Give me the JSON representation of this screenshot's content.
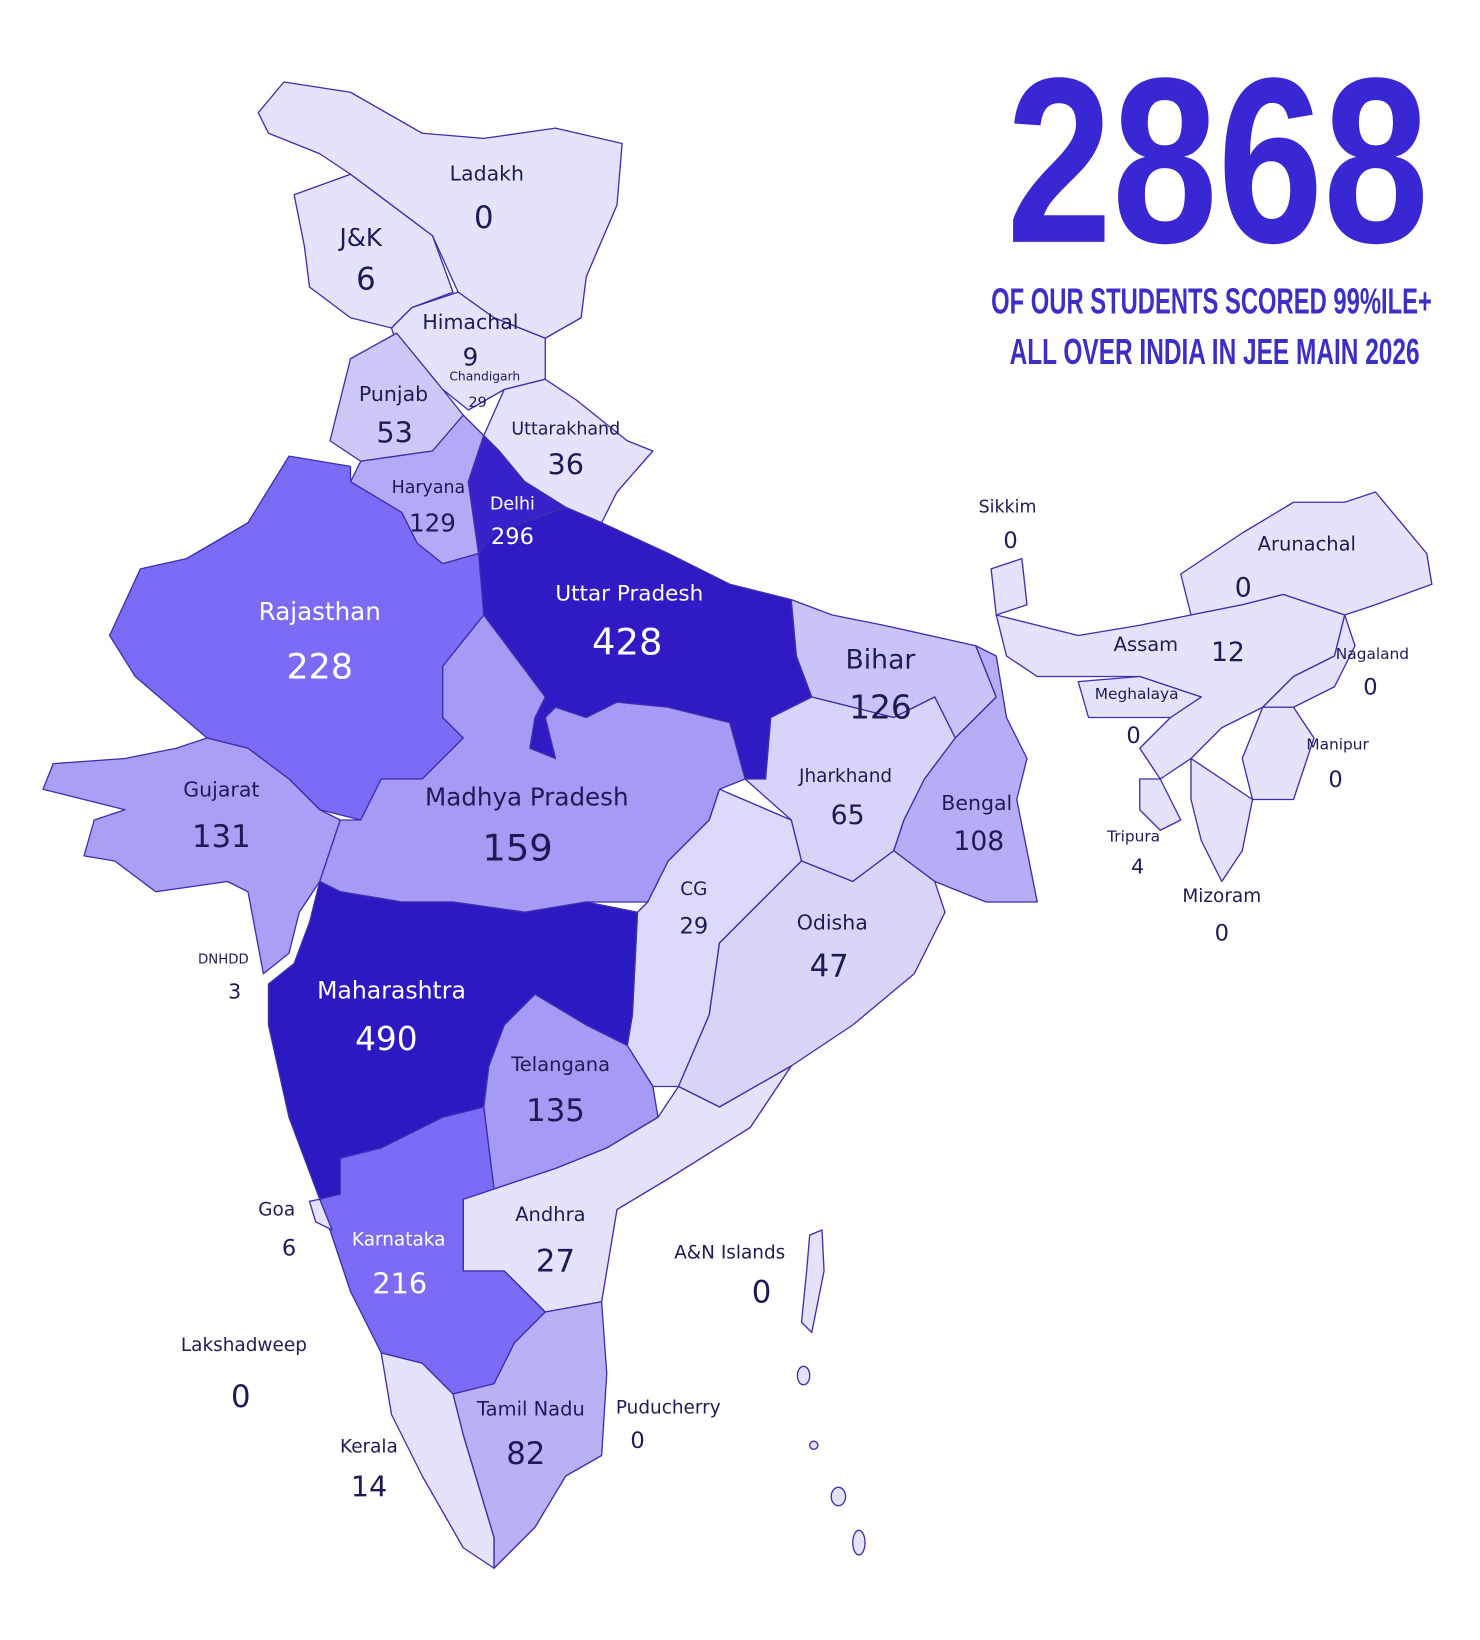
{
  "header": {
    "total": 2868,
    "subtitle_lines": [
      "OF OUR STUDENTS SCORED 99%ILE+",
      "ALL OVER INDIA IN JEE MAIN 2026"
    ]
  },
  "regions": [
    {
      "name": "Ladakh",
      "value": 0,
      "color": "#e5e3fb"
    },
    {
      "name": "J&K",
      "value": 6,
      "color": "#e5e3fb"
    },
    {
      "name": "Himachal",
      "value": 9,
      "color": "#e5e3fb"
    },
    {
      "name": "Chandigarh",
      "value": 29
    },
    {
      "name": "Punjab",
      "value": 53,
      "color": "#cdc8f8"
    },
    {
      "name": "Uttarakhand",
      "value": 36,
      "color": "#e5e3fb"
    },
    {
      "name": "Haryana",
      "value": 129,
      "color": "#b2aaf6"
    },
    {
      "name": "Delhi",
      "value": 296,
      "color": "#3522c9"
    },
    {
      "name": "Uttar Pradesh",
      "value": 428,
      "color": "#2e1bc4"
    },
    {
      "name": "Rajasthan",
      "value": 228,
      "color": "#7b6cf6"
    },
    {
      "name": "Bihar",
      "value": 126,
      "color": "#c9c3f8"
    },
    {
      "name": "Gujarat",
      "value": 131,
      "color": "#a9a0f5"
    },
    {
      "name": "Madhya Pradesh",
      "value": 159,
      "color": "#a49bf5"
    },
    {
      "name": "Jharkhand",
      "value": 65,
      "color": "#d8d4f9"
    },
    {
      "name": "Bengal",
      "value": 108,
      "color": "#b5adf5"
    },
    {
      "name": "CG",
      "value": 29,
      "color": "#dcd9fa"
    },
    {
      "name": "Odisha",
      "value": 47,
      "color": "#d9d5f9"
    },
    {
      "name": "Maharashtra",
      "value": 490,
      "color": "#2b19c2"
    },
    {
      "name": "Telangana",
      "value": 135,
      "color": "#a49bf5"
    },
    {
      "name": "Andhra",
      "value": 27,
      "color": "#e5e3fb"
    },
    {
      "name": "Karnataka",
      "value": 216,
      "color": "#7b6cf6"
    },
    {
      "name": "Tamil Nadu",
      "value": 82,
      "color": "#b8b1f5"
    },
    {
      "name": "Kerala",
      "value": 14,
      "color": "#e5e3fb"
    },
    {
      "name": "Goa",
      "value": 6,
      "color": "#e5e3fb"
    },
    {
      "name": "Lakshadweep",
      "value": 0
    },
    {
      "name": "Puducherry",
      "value": 0
    },
    {
      "name": "A&N Islands",
      "value": 0,
      "color": "#e5e3fb"
    },
    {
      "name": "DNHDD",
      "value": 3
    },
    {
      "name": "Sikkim",
      "value": 0,
      "color": "#e5e3fb"
    },
    {
      "name": "Arunachal",
      "value": 0,
      "color": "#e5e3fb"
    },
    {
      "name": "Assam",
      "value": 12,
      "color": "#e5e3fb"
    },
    {
      "name": "Meghalaya",
      "value": 0,
      "color": "#e5e3fb"
    },
    {
      "name": "Nagaland",
      "value": 0,
      "color": "#e5e3fb"
    },
    {
      "name": "Manipur",
      "value": 0,
      "color": "#e5e3fb"
    },
    {
      "name": "Tripura",
      "value": 4,
      "color": "#e5e3fb"
    },
    {
      "name": "Mizoram",
      "value": 0,
      "color": "#e5e3fb"
    }
  ]
}
